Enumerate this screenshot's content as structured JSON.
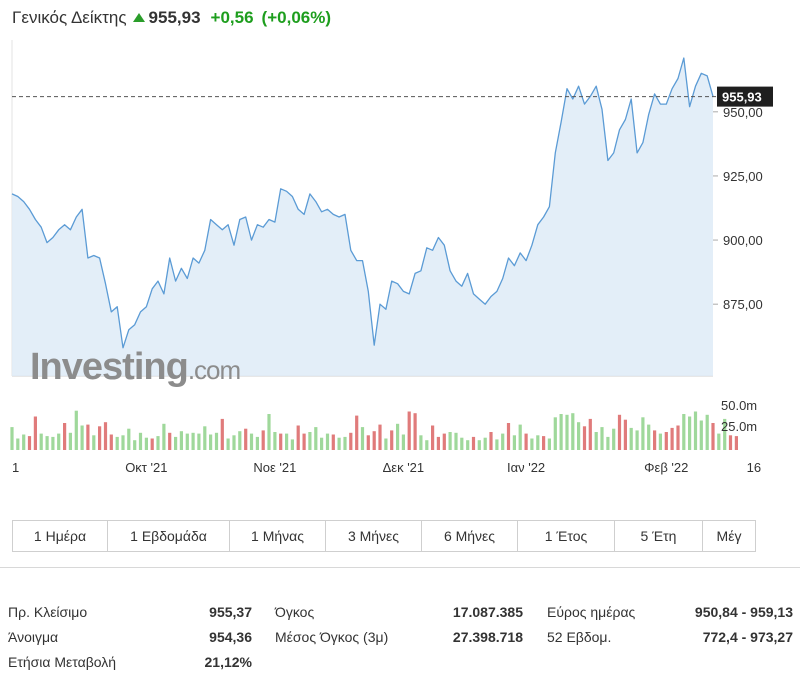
{
  "header": {
    "title": "Γενικός Δείκτης",
    "price": "955,93",
    "change": "+0,56",
    "change_pct": "(+0,06%)",
    "up_color": "#2a9d2a",
    "arrow_icon": "up-arrow-icon"
  },
  "chart_data": {
    "type": "area",
    "current_value": 955.93,
    "current_label": "955,93",
    "ylim": [
      847,
      978
    ],
    "y_ticks": [
      {
        "value": 875,
        "label": "875,00"
      },
      {
        "value": 900,
        "label": "900,00"
      },
      {
        "value": 925,
        "label": "925,00"
      },
      {
        "value": 950,
        "label": "950,00"
      }
    ],
    "x_ticks": [
      {
        "index": 0,
        "label": "1"
      },
      {
        "index": 23,
        "label": "Οκτ '21"
      },
      {
        "index": 45,
        "label": "Νοε '21"
      },
      {
        "index": 67,
        "label": "Δεκ '21"
      },
      {
        "index": 88,
        "label": "Ιαν '22"
      },
      {
        "index": 112,
        "label": "Φεβ '22"
      },
      {
        "index": 127,
        "label": "16"
      }
    ],
    "price": [
      918,
      917,
      915,
      912,
      908,
      905,
      899,
      901,
      904,
      906,
      904,
      909,
      912,
      893,
      894,
      893,
      883,
      872,
      874,
      858,
      865,
      867,
      872,
      874,
      881,
      884,
      879,
      893,
      884,
      889,
      885,
      893,
      891,
      896,
      908,
      906,
      904,
      906,
      898,
      908,
      909,
      900,
      906,
      905,
      908,
      907,
      920,
      919,
      917,
      912,
      910,
      918,
      915,
      911,
      912,
      910,
      909,
      910,
      896,
      892,
      892,
      880,
      859,
      875,
      873,
      884,
      883,
      880,
      879,
      887,
      888,
      897,
      896,
      901,
      898,
      888,
      884,
      882,
      887,
      879,
      877,
      875,
      878,
      880,
      885,
      893,
      890,
      895,
      892,
      898,
      906,
      909,
      913,
      934,
      946,
      959,
      955,
      960,
      953,
      956,
      960,
      951,
      931,
      934,
      943,
      947,
      955,
      934,
      938,
      949,
      957,
      953,
      953,
      959,
      963,
      971,
      952,
      960,
      965,
      964,
      956
    ],
    "volume_unit_labels": [
      "50.0m",
      "25.0m"
    ],
    "volume_max": 66,
    "volume": [
      [
        28,
        "g"
      ],
      [
        14,
        "g"
      ],
      [
        19,
        "g"
      ],
      [
        17,
        "r"
      ],
      [
        41,
        "r"
      ],
      [
        20,
        "g"
      ],
      [
        17,
        "g"
      ],
      [
        16,
        "g"
      ],
      [
        20,
        "g"
      ],
      [
        33,
        "r"
      ],
      [
        21,
        "g"
      ],
      [
        48,
        "g"
      ],
      [
        30,
        "g"
      ],
      [
        31,
        "r"
      ],
      [
        18,
        "g"
      ],
      [
        29,
        "r"
      ],
      [
        34,
        "r"
      ],
      [
        19,
        "r"
      ],
      [
        16,
        "g"
      ],
      [
        18,
        "g"
      ],
      [
        26,
        "g"
      ],
      [
        12,
        "g"
      ],
      [
        21,
        "g"
      ],
      [
        15,
        "g"
      ],
      [
        14,
        "r"
      ],
      [
        17,
        "g"
      ],
      [
        32,
        "g"
      ],
      [
        21,
        "r"
      ],
      [
        16,
        "g"
      ],
      [
        23,
        "g"
      ],
      [
        20,
        "g"
      ],
      [
        21,
        "g"
      ],
      [
        20,
        "g"
      ],
      [
        29,
        "g"
      ],
      [
        19,
        "g"
      ],
      [
        21,
        "g"
      ],
      [
        38,
        "r"
      ],
      [
        14,
        "g"
      ],
      [
        18,
        "g"
      ],
      [
        23,
        "g"
      ],
      [
        26,
        "r"
      ],
      [
        20,
        "g"
      ],
      [
        16,
        "g"
      ],
      [
        24,
        "r"
      ],
      [
        44,
        "g"
      ],
      [
        22,
        "g"
      ],
      [
        20,
        "r"
      ],
      [
        20,
        "g"
      ],
      [
        13,
        "g"
      ],
      [
        30,
        "r"
      ],
      [
        20,
        "r"
      ],
      [
        22,
        "g"
      ],
      [
        28,
        "g"
      ],
      [
        15,
        "g"
      ],
      [
        20,
        "g"
      ],
      [
        19,
        "r"
      ],
      [
        15,
        "g"
      ],
      [
        16,
        "g"
      ],
      [
        21,
        "r"
      ],
      [
        42,
        "r"
      ],
      [
        28,
        "g"
      ],
      [
        18,
        "r"
      ],
      [
        23,
        "r"
      ],
      [
        31,
        "r"
      ],
      [
        14,
        "g"
      ],
      [
        24,
        "r"
      ],
      [
        32,
        "g"
      ],
      [
        19,
        "g"
      ],
      [
        47,
        "r"
      ],
      [
        45,
        "r"
      ],
      [
        18,
        "g"
      ],
      [
        12,
        "g"
      ],
      [
        30,
        "r"
      ],
      [
        16,
        "r"
      ],
      [
        20,
        "r"
      ],
      [
        22,
        "g"
      ],
      [
        21,
        "g"
      ],
      [
        15,
        "g"
      ],
      [
        12,
        "g"
      ],
      [
        16,
        "r"
      ],
      [
        12,
        "g"
      ],
      [
        15,
        "g"
      ],
      [
        22,
        "r"
      ],
      [
        13,
        "g"
      ],
      [
        20,
        "g"
      ],
      [
        33,
        "r"
      ],
      [
        18,
        "g"
      ],
      [
        31,
        "g"
      ],
      [
        20,
        "r"
      ],
      [
        14,
        "g"
      ],
      [
        18,
        "g"
      ],
      [
        17,
        "r"
      ],
      [
        14,
        "g"
      ],
      [
        40,
        "g"
      ],
      [
        44,
        "g"
      ],
      [
        43,
        "g"
      ],
      [
        45,
        "g"
      ],
      [
        34,
        "g"
      ],
      [
        29,
        "r"
      ],
      [
        38,
        "r"
      ],
      [
        22,
        "g"
      ],
      [
        28,
        "g"
      ],
      [
        16,
        "g"
      ],
      [
        26,
        "g"
      ],
      [
        43,
        "r"
      ],
      [
        37,
        "r"
      ],
      [
        27,
        "g"
      ],
      [
        24,
        "g"
      ],
      [
        40,
        "g"
      ],
      [
        31,
        "g"
      ],
      [
        24,
        "r"
      ],
      [
        20,
        "g"
      ],
      [
        22,
        "r"
      ],
      [
        27,
        "r"
      ],
      [
        30,
        "r"
      ],
      [
        44,
        "g"
      ],
      [
        41,
        "g"
      ],
      [
        47,
        "g"
      ],
      [
        36,
        "g"
      ],
      [
        43,
        "g"
      ],
      [
        33,
        "r"
      ],
      [
        20,
        "g"
      ],
      [
        38,
        "g"
      ],
      [
        18,
        "r"
      ],
      [
        17,
        "r"
      ]
    ],
    "line_color": "#5b9bd5",
    "area_color": "#deebf7",
    "up_volume_color": "#9fd89b",
    "down_volume_color": "#e07b7b",
    "watermark_main": "Investing",
    "watermark_suffix": ".com"
  },
  "tabs": [
    "1 Ημέρα",
    "1 Εβδομάδα",
    "1 Μήνας",
    "3 Μήνες",
    "6 Μήνες",
    "1 Έτος",
    "5 Έτη",
    "Μέγ"
  ],
  "stats": {
    "col1": [
      {
        "label": "Πρ. Κλείσιμο",
        "value": "955,37"
      },
      {
        "label": "Άνοιγμα",
        "value": "954,36"
      },
      {
        "label": "Ετήσια Μεταβολή",
        "value": "21,12%"
      }
    ],
    "col2": [
      {
        "label": "Όγκος",
        "value": "17.087.385"
      },
      {
        "label": "Μέσος Όγκος (3μ)",
        "value": "27.398.718"
      }
    ],
    "col3": [
      {
        "label": "Εύρος ημέρας",
        "value": "950,84 - 959,13"
      },
      {
        "label": "52 Εβδομ.",
        "value": "772,4 - 973,27"
      }
    ]
  }
}
